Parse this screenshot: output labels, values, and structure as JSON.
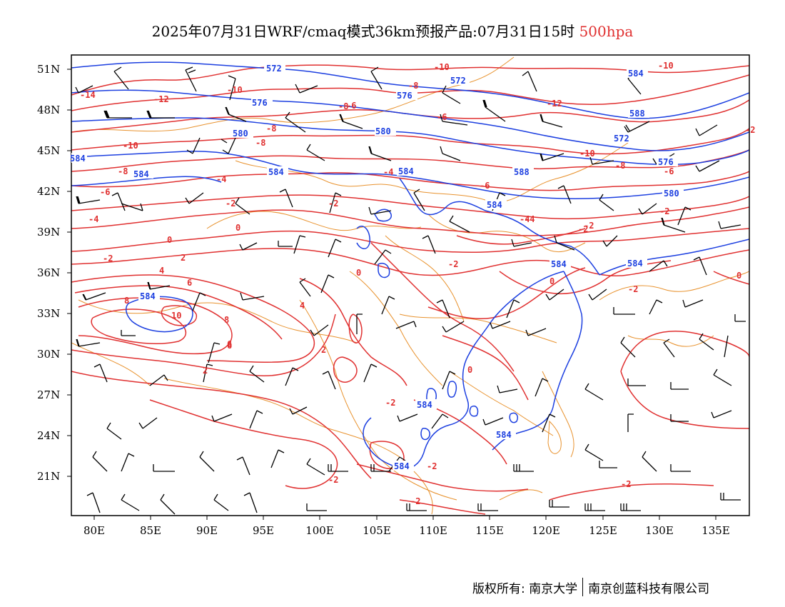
{
  "title": {
    "main": "2025年07月31日WRF/cmaq模式36km预报产品:07月31日15时",
    "level": "500hpa"
  },
  "axes": {
    "lon_ticks": [
      "80E",
      "85E",
      "90E",
      "95E",
      "100E",
      "105E",
      "110E",
      "115E",
      "120E",
      "125E",
      "130E",
      "135E"
    ],
    "lat_ticks": [
      "51N",
      "48N",
      "45N",
      "42N",
      "39N",
      "36N",
      "33N",
      "30N",
      "27N",
      "24N",
      "21N"
    ]
  },
  "colors": {
    "height_contour": "#1c3fe0",
    "temperature_contour": "#e03030",
    "boundary": "#e8922e",
    "wind_barb": "#000000"
  },
  "contour_labels": {
    "height": [
      "572",
      "572",
      "576",
      "576",
      "580",
      "580",
      "584",
      "584",
      "584",
      "584",
      "588",
      "584",
      "584",
      "584",
      "584",
      "584",
      "584",
      "584",
      "588",
      "572",
      "576",
      "580",
      "584",
      "584"
    ],
    "temperature": [
      "-14",
      "-12",
      "-10",
      "-10",
      "-8",
      "-6",
      "-6",
      "-8",
      "-10",
      "-12",
      "-10",
      "-10",
      "-8",
      "-8",
      "-6",
      "-6",
      "-4",
      "-4",
      "-4",
      "-4",
      "-2",
      "-2",
      "-2",
      "-2",
      "-2",
      "-2",
      "-2",
      "0",
      "0",
      "0",
      "0",
      "0",
      "0",
      "2",
      "2",
      "4",
      "6",
      "6",
      "8",
      "8",
      "10",
      "-2",
      "-2",
      "-2",
      "-4",
      "-8",
      "-6",
      "-8",
      "6",
      "4",
      "2",
      "-2",
      "-2",
      "-2",
      "-2"
    ]
  },
  "footer": {
    "copyright": "版权所有: 南京大学",
    "company": "南京创蓝科技有限公司"
  }
}
